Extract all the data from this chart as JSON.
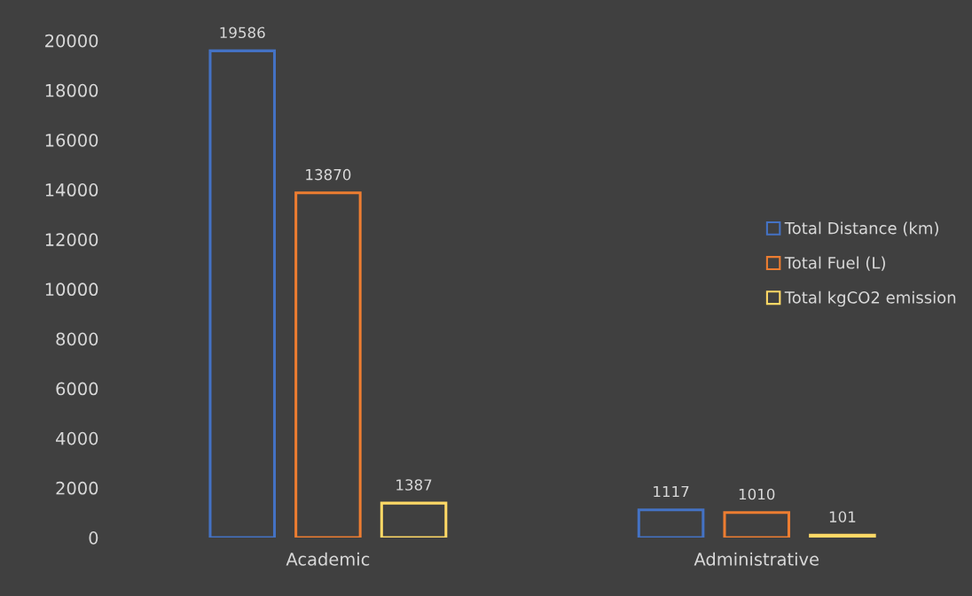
{
  "chart_data": {
    "type": "bar",
    "categories": [
      "Academic",
      "Administrative"
    ],
    "series": [
      {
        "name": "Total Distance (km)",
        "color": "#4472c4",
        "values": [
          19586,
          1117
        ]
      },
      {
        "name": "Total Fuel (L)",
        "color": "#ed7d31",
        "values": [
          13870,
          1010
        ]
      },
      {
        "name": "Total kgCO2 emission",
        "color": "#ffd966",
        "values": [
          1387,
          101
        ]
      }
    ],
    "ylim": [
      0,
      20000
    ],
    "yticks": [
      0,
      2000,
      4000,
      6000,
      8000,
      10000,
      12000,
      14000,
      16000,
      18000,
      20000
    ],
    "data_labels": true,
    "legend": "right",
    "grid": false
  }
}
